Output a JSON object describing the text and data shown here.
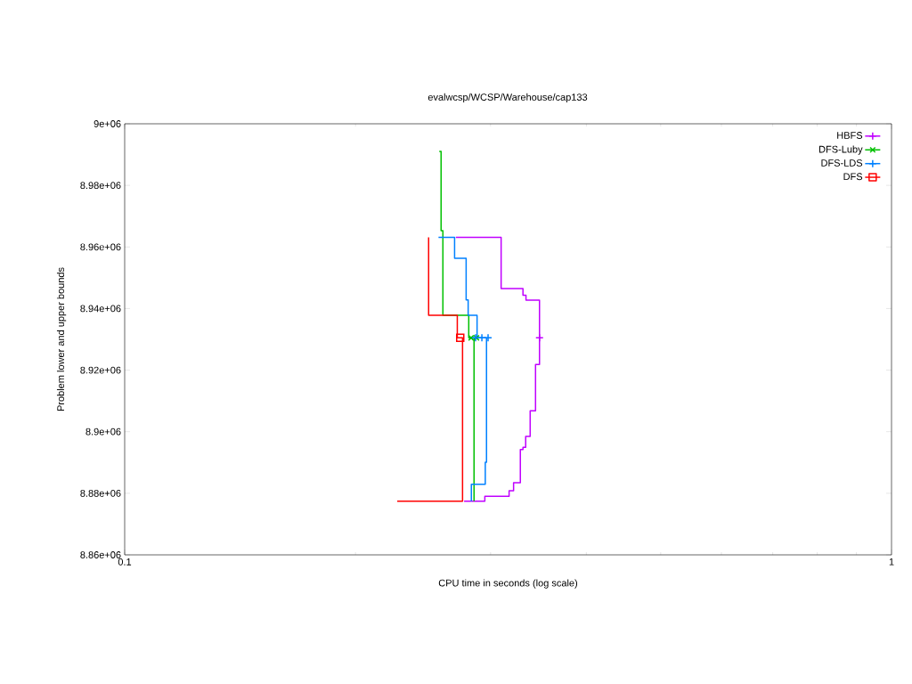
{
  "chart_data": {
    "type": "line",
    "title": "evalwcsp/WCSP/Warehouse/cap133",
    "xlabel": "CPU time in seconds (log scale)",
    "ylabel": "Problem lower and upper bounds",
    "log": "x",
    "xlim": [
      0.1,
      1
    ],
    "xticks": [
      0.1,
      1
    ],
    "ylim": [
      8860000,
      9000000
    ],
    "yticks": [
      {
        "value": 8860000,
        "label": "8.86e+06"
      },
      {
        "value": 8880000,
        "label": "8.88e+06"
      },
      {
        "value": 8900000,
        "label": "8.9e+06"
      },
      {
        "value": 8920000,
        "label": "8.92e+06"
      },
      {
        "value": 8940000,
        "label": "8.94e+06"
      },
      {
        "value": 8960000,
        "label": "8.96e+06"
      },
      {
        "value": 8980000,
        "label": "8.98e+06"
      },
      {
        "value": 9000000,
        "label": "9e+06"
      }
    ],
    "legend": "top right",
    "line_style": "solid",
    "grid": false,
    "series": [
      {
        "name": "HBFS",
        "color": "#c000ff",
        "x": [
          0.2703,
          0.3097,
          0.3097,
          0.3307,
          0.3307,
          0.3337,
          0.3337,
          0.3475,
          0.3475,
          0.3434,
          0.3434,
          0.3379,
          0.3379,
          0.3334,
          0.3334,
          0.3307,
          0.3307,
          0.3281,
          0.3281,
          0.3215,
          0.3215,
          0.3172,
          0.3172,
          0.2949,
          0.2949,
          0.2771
        ],
        "values": [
          8963100,
          8963100,
          8946500,
          8946500,
          8944300,
          8944300,
          8942700,
          8942700,
          8921800,
          8921800,
          8906800,
          8906800,
          8898500,
          8898500,
          8894900,
          8894900,
          8894200,
          8894200,
          8883400,
          8883400,
          8880800,
          8880800,
          8879000,
          8879000,
          8877400,
          8877400
        ]
      },
      {
        "type": "scatter",
        "color": "#c000ff",
        "marker": "cross",
        "x": [
          0.3475
        ],
        "values": [
          8930500
        ]
      },
      {
        "name": "DFS-Luby",
        "color": "#00c000",
        "x": [
          0.2572,
          0.2586,
          0.2586,
          0.26,
          0.26,
          0.281,
          0.281,
          0.2855,
          0.2855
        ],
        "values": [
          8991000,
          8991000,
          8965300,
          8965300,
          8937800,
          8937800,
          8930500,
          8930500,
          8877400
        ]
      },
      {
        "type": "scatter",
        "color": "#00c000",
        "marker": "x",
        "x": [
          0.283,
          0.2876
        ],
        "values": [
          8930500,
          8930500
        ]
      },
      {
        "name": "DFS-LDS",
        "color": "#0080ff",
        "x": [
          0.2566,
          0.2693,
          0.2693,
          0.2788,
          0.2788,
          0.2805,
          0.2805,
          0.2881,
          0.2881,
          0.2964,
          0.2964,
          0.2953,
          0.2953,
          0.2832,
          0.2832
        ],
        "values": [
          8963100,
          8963100,
          8956300,
          8956300,
          8942800,
          8942800,
          8937800,
          8937800,
          8930500,
          8930500,
          8890100,
          8890100,
          8882900,
          8882900,
          8877400
        ]
      },
      {
        "type": "scatter",
        "color": "#0080ff",
        "marker": "cross",
        "x": [
          0.2868,
          0.2923,
          0.2978
        ],
        "values": [
          8930500,
          8930500,
          8930500
        ]
      },
      {
        "name": "DFS",
        "color": "#ff0000",
        "x": [
          0.2491,
          0.2491,
          0.2715,
          0.2715,
          0.2758,
          0.2758,
          0.2267
        ],
        "values": [
          8963100,
          8937800,
          8937800,
          8930500,
          8930500,
          8877400,
          8877400
        ]
      },
      {
        "type": "scatter",
        "color": "#ff0000",
        "marker": "square",
        "x": [
          0.2739
        ],
        "values": [
          8930500
        ]
      }
    ]
  }
}
